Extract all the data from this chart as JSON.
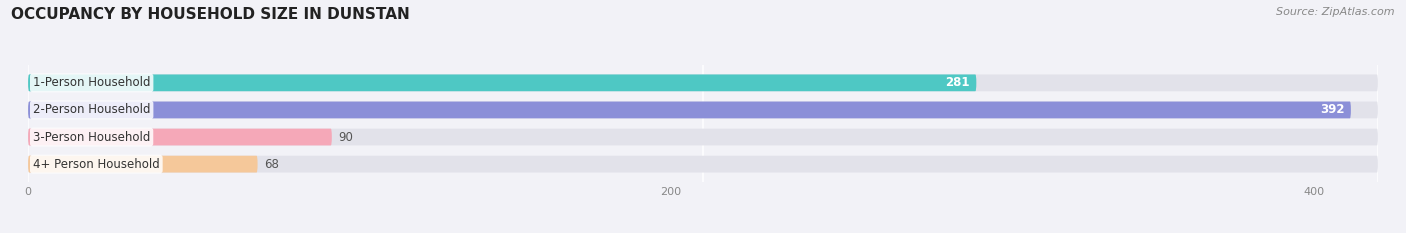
{
  "title": "OCCUPANCY BY HOUSEHOLD SIZE IN DUNSTAN",
  "source": "Source: ZipAtlas.com",
  "categories": [
    "1-Person Household",
    "2-Person Household",
    "3-Person Household",
    "4+ Person Household"
  ],
  "values": [
    281,
    392,
    90,
    68
  ],
  "bar_colors": [
    "#4ec8c4",
    "#8b8fd8",
    "#f5a8b8",
    "#f5c89a"
  ],
  "label_colors": [
    "white",
    "white",
    "#666666",
    "#666666"
  ],
  "xlim": [
    0,
    420
  ],
  "data_max": 400,
  "xticks": [
    0,
    200,
    400
  ],
  "background_color": "#f2f2f7",
  "bar_bg_color": "#e2e2ea",
  "title_fontsize": 11,
  "source_fontsize": 8,
  "label_fontsize": 8.5,
  "value_fontsize": 8.5,
  "bar_height": 0.62,
  "figsize": [
    14.06,
    2.33
  ],
  "dpi": 100
}
